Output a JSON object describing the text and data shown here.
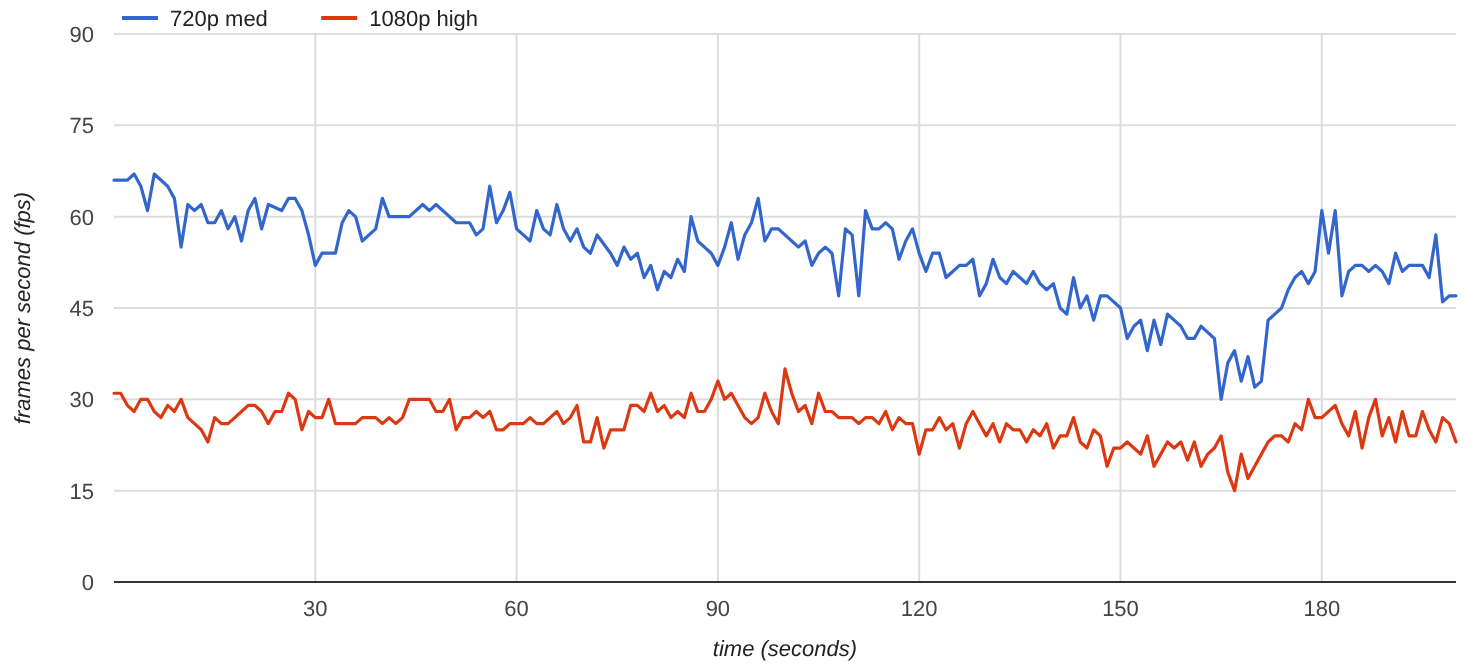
{
  "chart_data": {
    "type": "line",
    "xlabel": "time (seconds)",
    "ylabel": "frames per second (fps)",
    "xlim": [
      0,
      200
    ],
    "xticks": [
      30,
      60,
      90,
      120,
      150,
      180
    ],
    "ylim": [
      0,
      90
    ],
    "yticks": [
      0,
      15,
      30,
      45,
      60,
      75,
      90
    ],
    "grid": true,
    "legend": "top left",
    "marker": "none",
    "line_style": "solid",
    "series": [
      {
        "name": "720p med",
        "color": "#3366cc",
        "x": [
          0,
          2,
          3,
          4,
          5,
          6,
          8,
          9,
          10,
          11,
          12,
          13,
          14,
          15,
          16,
          17,
          18,
          19,
          20,
          21,
          22,
          23,
          25,
          26,
          27,
          28,
          29,
          30,
          31,
          33,
          34,
          35,
          36,
          37,
          39,
          40,
          41,
          44,
          46,
          47,
          48,
          50,
          51,
          53,
          54,
          55,
          56,
          57,
          58,
          59,
          60,
          61,
          62,
          63,
          64,
          65,
          66,
          67,
          68,
          69,
          70,
          71,
          72,
          74,
          75,
          76,
          77,
          78,
          79,
          80,
          81,
          82,
          83,
          84,
          85,
          86,
          87,
          88,
          89,
          90,
          91,
          92,
          93,
          94,
          95,
          96,
          97,
          98,
          99,
          100,
          101,
          102,
          103,
          104,
          105,
          106,
          107,
          108,
          109,
          110,
          111,
          112,
          113,
          114,
          115,
          116,
          117,
          118,
          119,
          120,
          121,
          122,
          123,
          124,
          125,
          126,
          127,
          128,
          129,
          130,
          131,
          132,
          133,
          134,
          135,
          136,
          137,
          138,
          139,
          140,
          141,
          142,
          143,
          144,
          145,
          146,
          147,
          148,
          149,
          150,
          151,
          152,
          153,
          154,
          155,
          156,
          157,
          158,
          159,
          160,
          161,
          162,
          163,
          164,
          165,
          166,
          167,
          168,
          169,
          170,
          171,
          172,
          173,
          174,
          175,
          176,
          177,
          178,
          179,
          180,
          181,
          182,
          183,
          184,
          185,
          186,
          187,
          188,
          189,
          190,
          191,
          192,
          193,
          194,
          195,
          196,
          197,
          198,
          199,
          200
        ],
        "values": [
          66,
          66,
          67,
          65,
          61,
          67,
          65,
          63,
          55,
          62,
          61,
          62,
          59,
          59,
          61,
          58,
          60,
          56,
          61,
          63,
          58,
          62,
          61,
          63,
          63,
          61,
          57,
          52,
          54,
          54,
          59,
          61,
          60,
          56,
          58,
          63,
          60,
          60,
          62,
          61,
          62,
          60,
          59,
          59,
          57,
          58,
          65,
          59,
          61,
          64,
          58,
          57,
          56,
          61,
          58,
          57,
          62,
          58,
          56,
          58,
          55,
          54,
          57,
          54,
          52,
          55,
          53,
          54,
          50,
          52,
          48,
          51,
          50,
          53,
          51,
          60,
          56,
          55,
          54,
          52,
          55,
          59,
          53,
          57,
          59,
          63,
          56,
          58,
          58,
          57,
          56,
          55,
          56,
          52,
          54,
          55,
          54,
          47,
          58,
          57,
          47,
          61,
          58,
          58,
          59,
          58,
          53,
          56,
          58,
          54,
          51,
          54,
          54,
          50,
          51,
          52,
          52,
          53,
          47,
          49,
          53,
          50,
          49,
          51,
          50,
          49,
          51,
          49,
          48,
          49,
          45,
          44,
          50,
          45,
          47,
          43,
          47,
          47,
          46,
          45,
          40,
          42,
          43,
          38,
          43,
          39,
          44,
          43,
          42,
          40,
          40,
          42,
          41,
          40,
          30,
          36,
          38,
          33,
          37,
          32,
          33,
          43,
          44,
          45,
          48,
          50,
          51,
          49,
          51,
          61,
          54,
          61,
          47,
          51,
          52,
          52,
          51,
          52,
          51,
          49,
          54,
          51,
          52,
          52,
          52,
          50,
          57,
          46,
          47,
          47
        ]
      },
      {
        "name": "1080p high",
        "color": "#dc3912",
        "x": [
          0,
          1,
          2,
          3,
          4,
          5,
          6,
          7,
          8,
          9,
          10,
          11,
          12,
          13,
          14,
          15,
          16,
          17,
          18,
          19,
          20,
          21,
          22,
          23,
          24,
          25,
          26,
          27,
          28,
          29,
          30,
          31,
          32,
          33,
          34,
          35,
          36,
          37,
          38,
          39,
          40,
          41,
          42,
          43,
          44,
          45,
          46,
          47,
          48,
          49,
          50,
          51,
          52,
          53,
          54,
          55,
          56,
          57,
          58,
          59,
          60,
          61,
          62,
          63,
          64,
          65,
          66,
          67,
          68,
          69,
          70,
          71,
          72,
          73,
          74,
          75,
          76,
          77,
          78,
          79,
          80,
          81,
          82,
          83,
          84,
          85,
          86,
          87,
          88,
          89,
          90,
          91,
          92,
          93,
          94,
          95,
          96,
          97,
          98,
          99,
          100,
          101,
          102,
          103,
          104,
          105,
          106,
          107,
          108,
          109,
          110,
          111,
          112,
          113,
          114,
          115,
          116,
          117,
          118,
          119,
          120,
          121,
          122,
          123,
          124,
          125,
          126,
          127,
          128,
          129,
          130,
          131,
          132,
          133,
          134,
          135,
          136,
          137,
          138,
          139,
          140,
          141,
          142,
          143,
          144,
          145,
          146,
          147,
          148,
          149,
          150,
          151,
          152,
          153,
          154,
          155,
          156,
          157,
          158,
          159,
          160,
          161,
          162,
          163,
          164,
          165,
          166,
          167,
          168,
          169,
          170,
          171,
          172,
          173,
          174,
          175,
          176,
          177,
          178,
          179,
          180,
          181,
          182,
          183,
          184,
          185,
          186,
          187,
          188,
          189,
          190,
          191,
          192,
          193,
          194,
          195,
          196,
          197,
          198,
          199,
          200
        ],
        "values": [
          31,
          31,
          29,
          28,
          30,
          30,
          28,
          27,
          29,
          28,
          30,
          27,
          26,
          25,
          23,
          27,
          26,
          26,
          27,
          28,
          29,
          29,
          28,
          26,
          28,
          28,
          31,
          30,
          25,
          28,
          27,
          27,
          30,
          26,
          26,
          26,
          26,
          27,
          27,
          27,
          26,
          27,
          26,
          27,
          30,
          30,
          30,
          30,
          28,
          28,
          30,
          25,
          27,
          27,
          28,
          27,
          28,
          25,
          25,
          26,
          26,
          26,
          27,
          26,
          26,
          27,
          28,
          26,
          27,
          29,
          23,
          23,
          27,
          22,
          25,
          25,
          25,
          29,
          29,
          28,
          31,
          28,
          29,
          27,
          28,
          27,
          31,
          28,
          28,
          30,
          33,
          30,
          31,
          29,
          27,
          26,
          27,
          31,
          28,
          26,
          35,
          31,
          28,
          29,
          26,
          31,
          28,
          28,
          27,
          27,
          27,
          26,
          27,
          27,
          26,
          28,
          25,
          27,
          26,
          26,
          21,
          25,
          25,
          27,
          25,
          26,
          22,
          26,
          28,
          26,
          24,
          26,
          23,
          26,
          25,
          25,
          23,
          25,
          24,
          26,
          22,
          24,
          24,
          27,
          23,
          22,
          25,
          24,
          19,
          22,
          22,
          23,
          22,
          21,
          24,
          19,
          21,
          23,
          22,
          23,
          20,
          23,
          19,
          21,
          22,
          24,
          18,
          15,
          21,
          17,
          19,
          21,
          23,
          24,
          24,
          23,
          26,
          25,
          30,
          27,
          27,
          28,
          29,
          26,
          24,
          28,
          22,
          27,
          30,
          24,
          27,
          23,
          28,
          24,
          24,
          28,
          25,
          23,
          27,
          26,
          23
        ]
      }
    ]
  }
}
